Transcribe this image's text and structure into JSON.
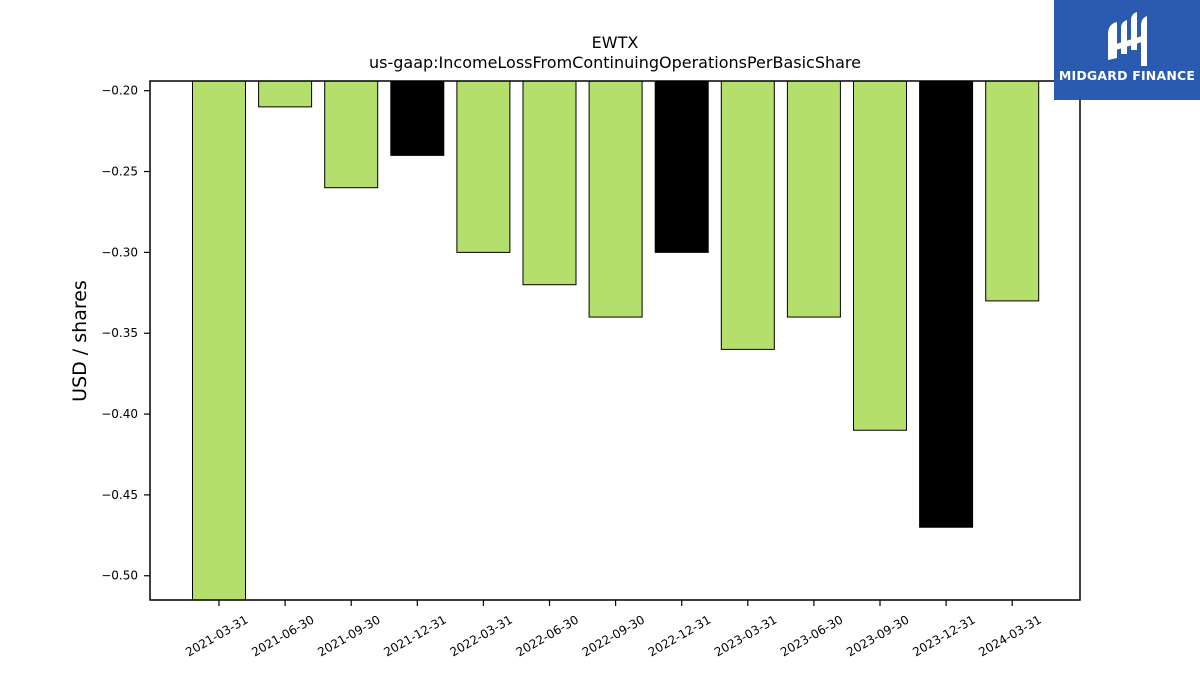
{
  "brand": {
    "name": "MIDGARD FINANCE",
    "background": "#2b5bb0"
  },
  "chart_data": {
    "type": "bar",
    "title": "EWTX",
    "subtitle": "us-gaap:IncomeLossFromContinuingOperationsPerBasicShare",
    "xlabel": "",
    "ylabel": "USD / shares",
    "ylim": [
      -0.515,
      -0.194
    ],
    "yticks": [
      -0.2,
      -0.25,
      -0.3,
      -0.35,
      -0.4,
      -0.45,
      -0.5
    ],
    "grid": false,
    "categories": [
      "2021-03-31",
      "2021-06-30",
      "2021-09-30",
      "2021-12-31",
      "2022-03-31",
      "2022-06-30",
      "2022-09-30",
      "2022-12-31",
      "2023-03-31",
      "2023-06-30",
      "2023-09-30",
      "2023-12-31",
      "2024-03-31"
    ],
    "values": [
      -0.53,
      -0.21,
      -0.26,
      -0.24,
      -0.3,
      -0.32,
      -0.34,
      -0.3,
      -0.36,
      -0.34,
      -0.41,
      -0.47,
      -0.33
    ],
    "bar_colors": [
      "#b5df6d",
      "#b5df6d",
      "#b5df6d",
      "#000000",
      "#b5df6d",
      "#b5df6d",
      "#b5df6d",
      "#000000",
      "#b5df6d",
      "#b5df6d",
      "#b5df6d",
      "#000000",
      "#b5df6d"
    ]
  }
}
